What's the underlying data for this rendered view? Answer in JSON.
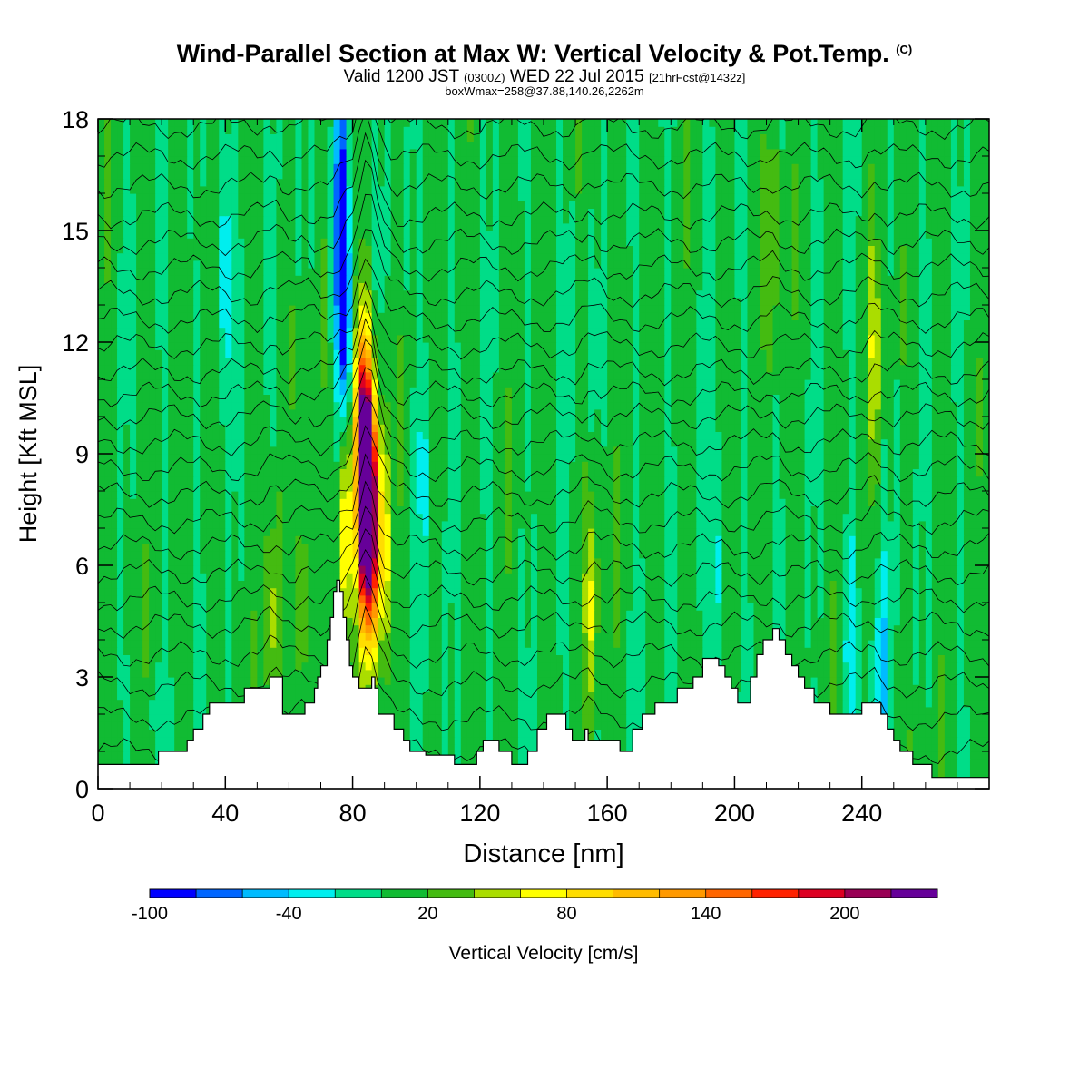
{
  "titles": {
    "main": "Wind-Parallel Section at Max W: Vertical Velocity & Pot.Temp.",
    "copyright": "(C)",
    "valid_prefix": "Valid 1200 JST",
    "valid_utc": "(0300Z)",
    "valid_date": "WED 22 Jul 2015",
    "forecast": "[21hrFcst@1432z]",
    "box_info": "boxWmax=258@37.88,140.26,2262m"
  },
  "chart_data": {
    "type": "heatmap",
    "xlabel": "Distance [nm]",
    "ylabel": "Height [Kft MSL]",
    "xlim": [
      0,
      280
    ],
    "ylim": [
      0,
      18
    ],
    "xticks": [
      0,
      40,
      80,
      120,
      160,
      200,
      240
    ],
    "yticks": [
      0,
      3,
      6,
      9,
      12,
      15,
      18
    ],
    "colorbar": {
      "label": "Vertical Velocity [cm/s]",
      "ticks": [
        -100,
        -40,
        20,
        80,
        140,
        200
      ],
      "min": -100,
      "step": 20,
      "colors": [
        "#0000ff",
        "#0066ff",
        "#00bbff",
        "#00eeee",
        "#00dd88",
        "#11bb33",
        "#44bb11",
        "#aadd00",
        "#ffff00",
        "#ffdd00",
        "#ffbb00",
        "#ff9900",
        "#ff6600",
        "#ff2200",
        "#dd0022",
        "#990055",
        "#660099"
      ]
    },
    "terrain_kft": [
      [
        0,
        0.65
      ],
      [
        18,
        0.65
      ],
      [
        19,
        1.0
      ],
      [
        27,
        1.0
      ],
      [
        28,
        1.3
      ],
      [
        30,
        1.6
      ],
      [
        33,
        2.0
      ],
      [
        35,
        2.3
      ],
      [
        44,
        2.3
      ],
      [
        46,
        2.7
      ],
      [
        51,
        2.7
      ],
      [
        54,
        3.0
      ],
      [
        57,
        3.0
      ],
      [
        58,
        2.0
      ],
      [
        63,
        2.0
      ],
      [
        65,
        2.3
      ],
      [
        68,
        2.7
      ],
      [
        69,
        3.0
      ],
      [
        70,
        3.3
      ],
      [
        72,
        4.0
      ],
      [
        73,
        4.6
      ],
      [
        74,
        5.3
      ],
      [
        75,
        5.6
      ],
      [
        76,
        5.3
      ],
      [
        77,
        4.6
      ],
      [
        78,
        4.0
      ],
      [
        79,
        3.3
      ],
      [
        80,
        3.0
      ],
      [
        81,
        3.0
      ],
      [
        82,
        2.7
      ],
      [
        84,
        2.7
      ],
      [
        86,
        3.0
      ],
      [
        87,
        2.7
      ],
      [
        88,
        2.0
      ],
      [
        91,
        2.0
      ],
      [
        93,
        1.6
      ],
      [
        96,
        1.3
      ],
      [
        98,
        1.0
      ],
      [
        102,
        1.0
      ],
      [
        103,
        0.9
      ],
      [
        110,
        0.9
      ],
      [
        112,
        0.65
      ],
      [
        117,
        0.65
      ],
      [
        119,
        1.0
      ],
      [
        121,
        1.3
      ],
      [
        124,
        1.3
      ],
      [
        126,
        1.0
      ],
      [
        128,
        1.0
      ],
      [
        130,
        0.65
      ],
      [
        133,
        0.65
      ],
      [
        135,
        1.0
      ],
      [
        138,
        1.6
      ],
      [
        141,
        2.0
      ],
      [
        145,
        2.0
      ],
      [
        147,
        1.6
      ],
      [
        149,
        1.3
      ],
      [
        151,
        1.3
      ],
      [
        153,
        1.6
      ],
      [
        154,
        1.3
      ],
      [
        163,
        1.3
      ],
      [
        164,
        1.0
      ],
      [
        166,
        1.0
      ],
      [
        168,
        1.6
      ],
      [
        170,
        1.6
      ],
      [
        171,
        2.0
      ],
      [
        175,
        2.3
      ],
      [
        180,
        2.3
      ],
      [
        182,
        2.7
      ],
      [
        185,
        2.7
      ],
      [
        187,
        3.0
      ],
      [
        190,
        3.5
      ],
      [
        192,
        3.5
      ],
      [
        195,
        3.3
      ],
      [
        197,
        3.0
      ],
      [
        199,
        2.7
      ],
      [
        201,
        2.3
      ],
      [
        203,
        2.3
      ],
      [
        205,
        3.0
      ],
      [
        207,
        3.6
      ],
      [
        209,
        4.0
      ],
      [
        212,
        4.3
      ],
      [
        214,
        4.0
      ],
      [
        216,
        3.6
      ],
      [
        218,
        3.3
      ],
      [
        220,
        3.0
      ],
      [
        222,
        2.7
      ],
      [
        225,
        2.3
      ],
      [
        228,
        2.3
      ],
      [
        230,
        2.0
      ],
      [
        238,
        2.0
      ],
      [
        240,
        2.3
      ],
      [
        244,
        2.3
      ],
      [
        246,
        2.0
      ],
      [
        248,
        1.6
      ],
      [
        250,
        1.3
      ],
      [
        252,
        1.0
      ],
      [
        254,
        1.0
      ],
      [
        256,
        0.65
      ],
      [
        260,
        0.65
      ],
      [
        262,
        0.3
      ],
      [
        280,
        0.3
      ]
    ],
    "updraft_cores": [
      [
        84,
        7.5,
        220
      ],
      [
        83,
        9.5,
        150
      ],
      [
        86,
        8.0,
        120
      ],
      [
        87,
        6.5,
        80
      ],
      [
        78,
        7.0,
        90
      ],
      [
        90,
        6.5,
        60
      ],
      [
        155,
        5.0,
        60
      ],
      [
        244,
        12.0,
        50
      ],
      [
        212,
        15.0,
        40
      ],
      [
        55,
        4.5,
        50
      ],
      [
        65,
        5.0,
        40
      ]
    ],
    "downdraft_cores": [
      [
        77,
        13.0,
        -95
      ],
      [
        76,
        16.0,
        -80
      ],
      [
        40,
        14.0,
        -40
      ],
      [
        246,
        3.0,
        -50
      ],
      [
        236,
        4.0,
        -35
      ],
      [
        195,
        6.0,
        -30
      ],
      [
        102,
        8.5,
        -30
      ],
      [
        148,
        12.0,
        -25
      ]
    ],
    "isentrope_levels_kft": [
      1.0,
      1.9,
      2.8,
      3.6,
      4.4,
      5.1,
      5.8,
      6.5,
      7.2,
      7.9,
      8.6,
      9.3,
      10.0,
      10.6,
      11.2,
      11.9,
      12.6,
      13.3,
      14.0,
      14.7,
      15.4,
      16.2,
      17.0,
      17.8
    ]
  }
}
